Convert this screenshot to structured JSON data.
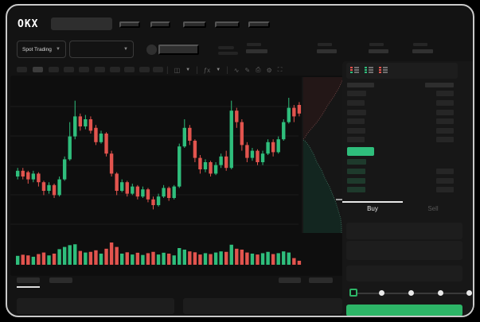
{
  "colors": {
    "up_green": "#2fbe7c",
    "down_red": "#e2544e",
    "buy_button_green": "#2db567",
    "bid_row_tint": "#1e3a2c"
  },
  "topnav": {
    "logo": "OKX"
  },
  "subheader": {
    "market_selector_label": "Spot Trading"
  },
  "order_form": {
    "buy_tab_label": "Buy",
    "sell_tab_label": "Sell",
    "selected_side": "Buy",
    "amount_slider_percent": 0
  },
  "chart_data": [
    {
      "type": "candlestick",
      "title": "",
      "x_axis": "time (tick labels not visible)",
      "y_axis": "price (tick labels not visible)",
      "scale_note": "values estimated on a normalized 0-100 scale from pixel positions; no numeric axis labels are rendered in the screenshot",
      "grid": "horizontal-only",
      "up_color": "#2fbe7c",
      "down_color": "#e2544e",
      "candles_ohlc": [
        [
          40,
          46,
          38,
          44
        ],
        [
          44,
          46,
          38,
          40
        ],
        [
          43,
          44,
          35,
          38
        ],
        [
          38,
          44,
          36,
          42
        ],
        [
          42,
          43,
          33,
          36
        ],
        [
          36,
          37,
          27,
          30
        ],
        [
          30,
          36,
          28,
          34
        ],
        [
          34,
          35,
          25,
          27
        ],
        [
          27,
          40,
          26,
          38
        ],
        [
          38,
          54,
          37,
          52
        ],
        [
          52,
          78,
          51,
          68
        ],
        [
          68,
          93,
          66,
          82
        ],
        [
          82,
          84,
          72,
          75
        ],
        [
          75,
          83,
          73,
          80
        ],
        [
          80,
          82,
          70,
          72
        ],
        [
          74,
          76,
          62,
          64
        ],
        [
          64,
          72,
          63,
          70
        ],
        [
          70,
          71,
          54,
          56
        ],
        [
          56,
          58,
          40,
          42
        ],
        [
          42,
          43,
          27,
          30
        ],
        [
          30,
          38,
          29,
          36
        ],
        [
          36,
          37,
          26,
          28
        ],
        [
          28,
          35,
          27,
          33
        ],
        [
          33,
          34,
          24,
          26
        ],
        [
          26,
          33,
          25,
          31
        ],
        [
          31,
          32,
          22,
          24
        ],
        [
          24,
          26,
          17,
          20
        ],
        [
          20,
          28,
          19,
          26
        ],
        [
          26,
          34,
          25,
          32
        ],
        [
          32,
          33,
          23,
          25
        ],
        [
          25,
          34,
          24,
          33
        ],
        [
          33,
          63,
          32,
          61
        ],
        [
          61,
          80,
          60,
          74
        ],
        [
          74,
          76,
          62,
          65
        ],
        [
          65,
          66,
          50,
          53
        ],
        [
          53,
          55,
          42,
          45
        ],
        [
          45,
          52,
          43,
          50
        ],
        [
          50,
          51,
          40,
          42
        ],
        [
          42,
          50,
          41,
          48
        ],
        [
          48,
          56,
          46,
          54
        ],
        [
          54,
          58,
          44,
          46
        ],
        [
          46,
          93,
          45,
          86
        ],
        [
          86,
          88,
          74,
          78
        ],
        [
          78,
          80,
          58,
          62
        ],
        [
          62,
          64,
          50,
          53
        ],
        [
          53,
          60,
          51,
          58
        ],
        [
          58,
          59,
          48,
          50
        ],
        [
          50,
          58,
          48,
          56
        ],
        [
          56,
          66,
          55,
          64
        ],
        [
          64,
          66,
          54,
          57
        ],
        [
          57,
          68,
          56,
          66
        ],
        [
          66,
          80,
          65,
          78
        ],
        [
          78,
          95,
          77,
          88
        ],
        [
          88,
          90,
          78,
          82
        ],
        [
          90,
          92,
          82,
          84
        ]
      ]
    },
    {
      "type": "bar",
      "name": "volume",
      "scale_note": "relative heights 0-1 estimated from pixels; colors follow candle direction",
      "values": [
        0.4,
        0.45,
        0.42,
        0.36,
        0.48,
        0.55,
        0.42,
        0.5,
        0.7,
        0.8,
        0.88,
        0.92,
        0.62,
        0.55,
        0.58,
        0.65,
        0.5,
        0.72,
        1.0,
        0.8,
        0.5,
        0.56,
        0.46,
        0.54,
        0.44,
        0.52,
        0.58,
        0.46,
        0.54,
        0.5,
        0.42,
        0.75,
        0.68,
        0.6,
        0.56,
        0.46,
        0.52,
        0.48,
        0.55,
        0.6,
        0.58,
        0.9,
        0.72,
        0.68,
        0.55,
        0.5,
        0.46,
        0.52,
        0.58,
        0.48,
        0.52,
        0.6,
        0.55,
        0.3,
        0.18
      ]
    },
    {
      "type": "area",
      "name": "orderbook-depth",
      "orientation": "vertical (asks above, bids below)",
      "scale_note": "pixel-profile points in chart-local coords; no labels visible",
      "asks_profile": [
        [
          419,
          2
        ],
        [
          413,
          15
        ],
        [
          406,
          27
        ],
        [
          399,
          37
        ],
        [
          392,
          49
        ],
        [
          385,
          59
        ],
        [
          378,
          67
        ],
        [
          373,
          73
        ],
        [
          370,
          78
        ],
        [
          368,
          80
        ]
      ],
      "bids_profile": [
        [
          368,
          81
        ],
        [
          371,
          83
        ],
        [
          376,
          90
        ],
        [
          381,
          99
        ],
        [
          385,
          109
        ],
        [
          391,
          119
        ],
        [
          395,
          129
        ],
        [
          401,
          140
        ],
        [
          405,
          150
        ],
        [
          409,
          160
        ],
        [
          412,
          170
        ],
        [
          415,
          180
        ],
        [
          416,
          190
        ],
        [
          416,
          198
        ]
      ],
      "ask_line_color": "#6e4444",
      "ask_fill_color": "#231717",
      "bid_line_color": "#3c6b5a",
      "bid_fill_color": "#132620"
    }
  ]
}
